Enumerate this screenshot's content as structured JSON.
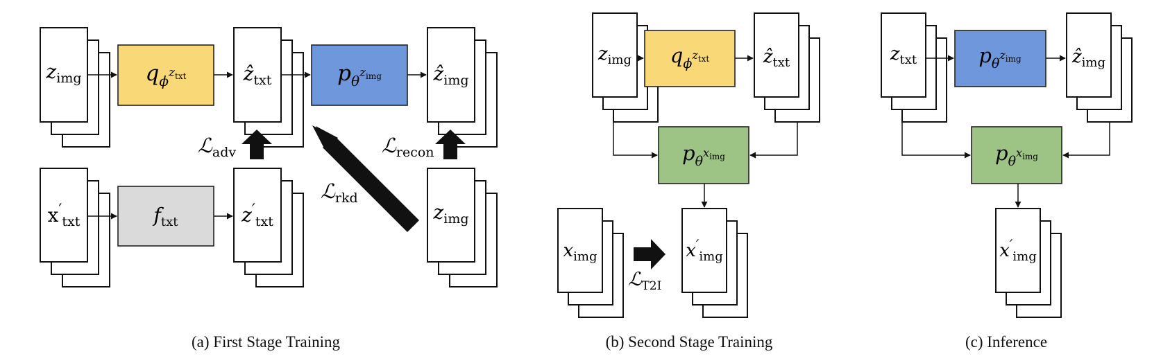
{
  "colors": {
    "q_box": "#f9d977",
    "p_z_box": "#6f98dc",
    "p_x_box": "#9dc484",
    "f_box": "#dadada",
    "stroke": "#111111"
  },
  "panel_a": {
    "caption": "(a) First Stage Training",
    "z_img_in": {
      "base": "z",
      "sub": "img"
    },
    "q": {
      "base": "q",
      "sub": "ϕ",
      "sup_base": "z",
      "sup_sub": "txt"
    },
    "z_hat_txt": {
      "base": "ẑ",
      "sub": "txt"
    },
    "p": {
      "base": "p",
      "sub": "θ",
      "sup_base": "z",
      "sup_sub": "img"
    },
    "z_hat_img": {
      "base": "ẑ",
      "sub": "img"
    },
    "x_txt_prime": {
      "base": "x",
      "prime": "′",
      "sub": "txt"
    },
    "f_txt": {
      "base": "f",
      "sub": "txt"
    },
    "z_txt_prime": {
      "base": "z",
      "prime": "′",
      "sub": "txt"
    },
    "z_img_target": {
      "base": "z",
      "sub": "img"
    },
    "loss_adv": {
      "base": "ℒ",
      "sub": "adv"
    },
    "loss_recon": {
      "base": "ℒ",
      "sub": "recon"
    },
    "loss_rkd": {
      "base": "ℒ",
      "sub": "rkd"
    }
  },
  "panel_b": {
    "caption": "(b) Second Stage Training",
    "z_img": {
      "base": "z",
      "sub": "img"
    },
    "q": {
      "base": "q",
      "sub": "ϕ",
      "sup_base": "z",
      "sup_sub": "txt"
    },
    "z_hat_txt": {
      "base": "ẑ",
      "sub": "txt"
    },
    "p": {
      "base": "p",
      "sub": "θ",
      "sup_base": "x",
      "sup_sub": "img"
    },
    "x_img": {
      "base": "x",
      "sub": "img"
    },
    "loss_t2i": {
      "base": "ℒ",
      "sub": "T2I"
    },
    "x_img_prime": {
      "base": "x",
      "prime": "′",
      "sub": "img"
    }
  },
  "panel_c": {
    "caption": "(c) Inference",
    "z_txt": {
      "base": "z",
      "sub": "txt"
    },
    "p_z": {
      "base": "p",
      "sub": "θ",
      "sup_base": "z",
      "sup_sub": "img"
    },
    "z_hat_img": {
      "base": "ẑ",
      "sub": "img"
    },
    "p_x": {
      "base": "p",
      "sub": "θ",
      "sup_base": "x",
      "sup_sub": "img"
    },
    "x_img_prime": {
      "base": "x",
      "prime": "′",
      "sub": "img"
    }
  }
}
